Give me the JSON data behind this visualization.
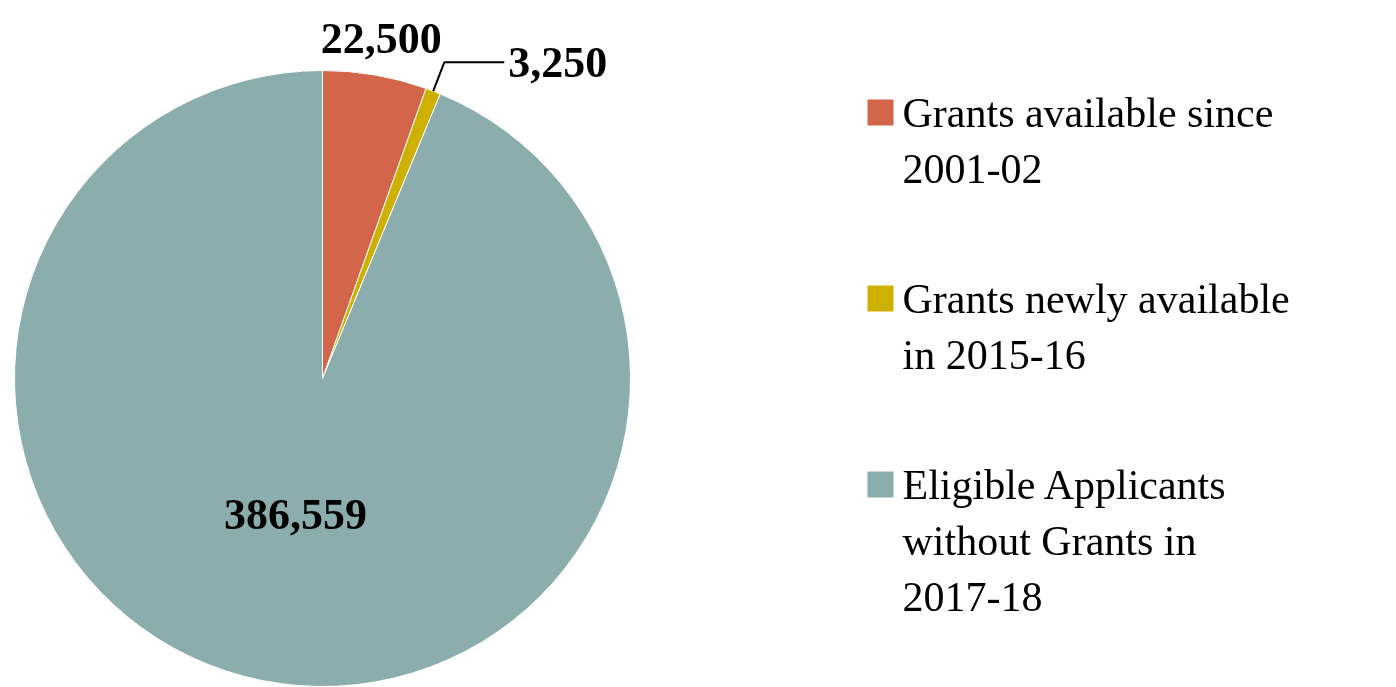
{
  "chart_data": {
    "type": "pie",
    "categories": [
      "Grants available since 2001-02",
      "Grants newly available in 2015-16",
      "Eligible Applicants without Grants in 2017-18"
    ],
    "values": [
      22500,
      3250,
      386559
    ],
    "colors": [
      "#d2654a",
      "#cdb000",
      "#8cadad"
    ],
    "value_labels": [
      "22,500",
      "3,250",
      "386,559"
    ],
    "legend": "right"
  }
}
